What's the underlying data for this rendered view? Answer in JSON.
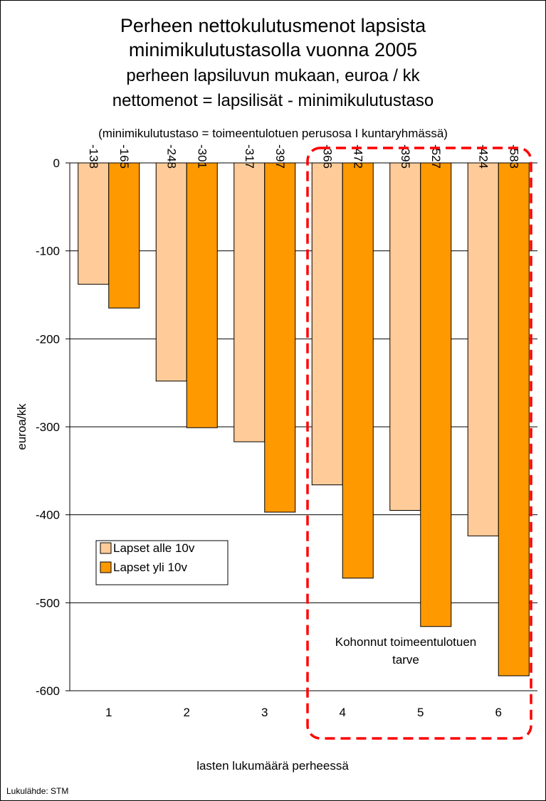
{
  "chart_data": {
    "type": "bar",
    "title_lines": [
      "Perheen nettokulutusmenot lapsista",
      "minimikulutustasolla  vuonna 2005",
      "perheen lapsiluvun mukaan, euroa / kk",
      "nettomenot = lapsilisät - minimikulutustaso"
    ],
    "subtitle": "(minimikulutustaso = toimeentulotuen perusosa I kuntaryhmässä)",
    "categories": [
      "1",
      "2",
      "3",
      "4",
      "5",
      "6"
    ],
    "series": [
      {
        "name": "Lapset alle 10v",
        "color": "#FFCC99",
        "values": [
          -138,
          -248,
          -317,
          -366,
          -395,
          -424
        ]
      },
      {
        "name": "Lapset yli 10v",
        "color": "#FF9900",
        "values": [
          -165,
          -301,
          -397,
          -472,
          -527,
          -583
        ]
      }
    ],
    "ylim": [
      -600,
      0
    ],
    "yticks": [
      "0",
      "-100",
      "-200",
      "-300",
      "-400",
      "-500",
      "-600"
    ],
    "ylabel": "euroa/kk",
    "xlabel": "lasten lukumäärä perheessä",
    "grid": true,
    "legend_position": "left-middle",
    "annotation": {
      "lines": [
        "Kohonnut toimeentulotuen",
        "tarve"
      ],
      "highlight_categories": [
        "4",
        "5",
        "6"
      ],
      "border_color": "#FF0000"
    }
  },
  "source_note": "Lukulähde: STM"
}
